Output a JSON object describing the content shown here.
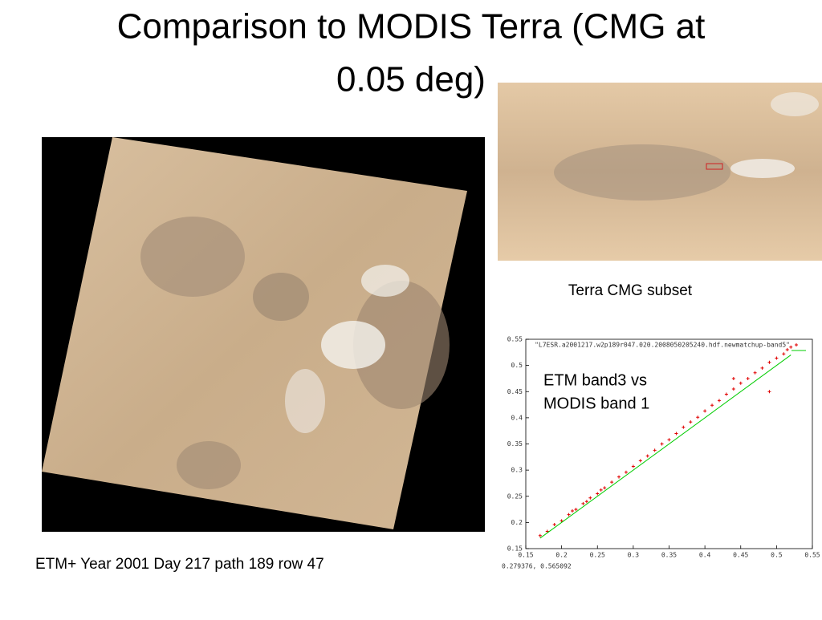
{
  "slide": {
    "title_lines": [
      "Comparison to MODIS Terra (CMG at",
      "0.05 deg)"
    ],
    "left_caption": "ETM+ Year 2001 Day 217 path  189 row 47",
    "right_caption": "Terra CMG subset"
  },
  "chart_data": {
    "type": "scatter",
    "annotation_lines": [
      "ETM band3 vs",
      "MODIS band 1"
    ],
    "coordinates": "0.279376, 0.565092",
    "xlim": [
      0.15,
      0.55
    ],
    "ylim": [
      0.15,
      0.55
    ],
    "xticks": [
      0.15,
      0.2,
      0.25,
      0.3,
      0.35,
      0.4,
      0.45,
      0.5,
      0.55
    ],
    "yticks": [
      0.15,
      0.2,
      0.25,
      0.3,
      0.35,
      0.4,
      0.45,
      0.5,
      0.55
    ],
    "series": [
      {
        "name": "\"L7ESR.a2001217.w2p189r047.020.2008050205240.hdf.newmatchup-band5\"",
        "color": "#e00000",
        "x": [
          0.17,
          0.18,
          0.19,
          0.2,
          0.21,
          0.215,
          0.22,
          0.23,
          0.235,
          0.24,
          0.25,
          0.255,
          0.26,
          0.27,
          0.28,
          0.29,
          0.3,
          0.31,
          0.32,
          0.33,
          0.34,
          0.35,
          0.36,
          0.37,
          0.38,
          0.39,
          0.4,
          0.41,
          0.42,
          0.43,
          0.44,
          0.45,
          0.46,
          0.47,
          0.48,
          0.49,
          0.5,
          0.51,
          0.515,
          0.52,
          0.49,
          0.44
        ],
        "y": [
          0.175,
          0.183,
          0.196,
          0.203,
          0.215,
          0.222,
          0.225,
          0.236,
          0.24,
          0.247,
          0.255,
          0.262,
          0.266,
          0.277,
          0.287,
          0.296,
          0.307,
          0.318,
          0.327,
          0.338,
          0.35,
          0.358,
          0.37,
          0.382,
          0.392,
          0.401,
          0.413,
          0.424,
          0.433,
          0.445,
          0.455,
          0.466,
          0.475,
          0.486,
          0.495,
          0.506,
          0.514,
          0.522,
          0.53,
          0.535,
          0.45,
          0.475
        ]
      },
      {
        "type": "line",
        "color": "#00cc00",
        "x": [
          0.17,
          0.52
        ],
        "y": [
          0.17,
          0.52
        ]
      }
    ]
  }
}
